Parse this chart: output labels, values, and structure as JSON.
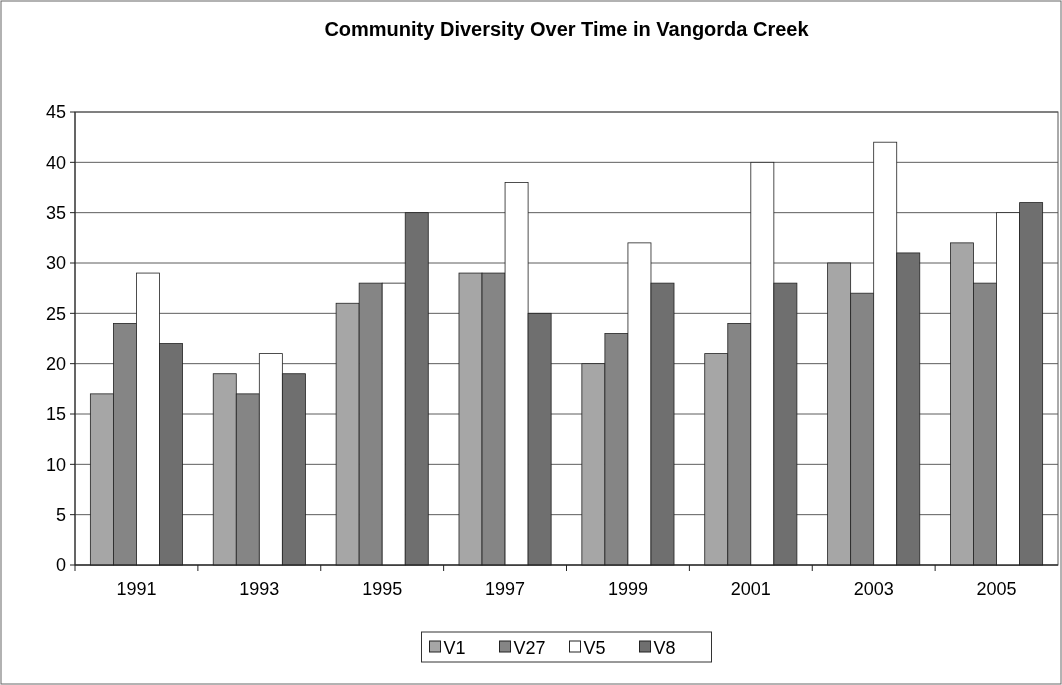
{
  "chart_data": {
    "type": "bar",
    "title": "Community Diversity Over Time in Vangorda Creek",
    "categories": [
      "1991",
      "1993",
      "1995",
      "1997",
      "1999",
      "2001",
      "2003",
      "2005"
    ],
    "series": [
      {
        "name": "V1",
        "color": "#a6a6a6",
        "values": [
          17,
          19,
          26,
          29,
          20,
          21,
          30,
          32
        ]
      },
      {
        "name": "V27",
        "color": "#858585",
        "values": [
          24,
          17,
          28,
          29,
          23,
          24,
          27,
          28
        ]
      },
      {
        "name": "V5",
        "color": "#ffffff",
        "values": [
          29,
          21,
          28,
          38,
          32,
          40,
          42,
          35
        ]
      },
      {
        "name": "V8",
        "color": "#6f6f6f",
        "values": [
          22,
          19,
          35,
          25,
          28,
          28,
          31,
          36
        ]
      }
    ],
    "ylim": [
      0,
      45
    ],
    "yticks": [
      0,
      5,
      10,
      15,
      20,
      25,
      30,
      35,
      40,
      45
    ],
    "grid": "y",
    "legend": "bottom"
  }
}
